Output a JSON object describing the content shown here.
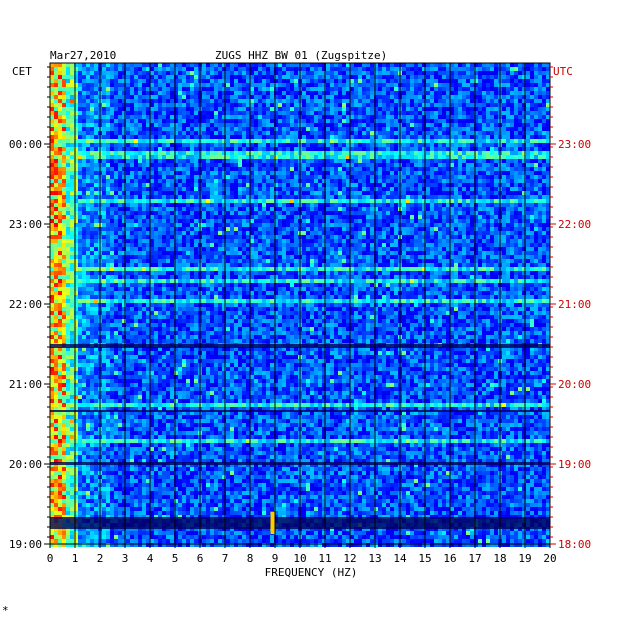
{
  "header": {
    "date": "Mar27,2010",
    "station": "ZUGS HHZ BW 01 (Zugspitze)",
    "left_zone": "CET",
    "right_zone": "UTC"
  },
  "footer_mark": "*",
  "colors": {
    "background": "#ffffff",
    "text": "#000000",
    "utc_text": "#cc0000",
    "spectrogram_low": "#0000b0",
    "spectrogram_high": "#ff0000"
  },
  "chart_data": {
    "type": "heatmap",
    "title": "ZUGS HHZ BW 01 (Zugspitze)",
    "xlabel": "FREQUENCY (HZ)",
    "ylabel": "",
    "xlim": [
      0,
      20
    ],
    "x_ticks": [
      "0",
      "1",
      "2",
      "3",
      "4",
      "5",
      "6",
      "7",
      "8",
      "9",
      "10",
      "11",
      "12",
      "13",
      "14",
      "15",
      "16",
      "17",
      "18",
      "19",
      "20"
    ],
    "y_ticks_left": [
      "00:00",
      "23:00",
      "22:00",
      "21:00",
      "20:00",
      "19:00"
    ],
    "y_ticks_right": [
      "23:00",
      "22:00",
      "21:00",
      "20:00",
      "19:00",
      "18:00"
    ],
    "grid": true,
    "colormap": [
      "#00008b",
      "#0000ff",
      "#00ffff",
      "#ffff00",
      "#ff0000"
    ]
  }
}
